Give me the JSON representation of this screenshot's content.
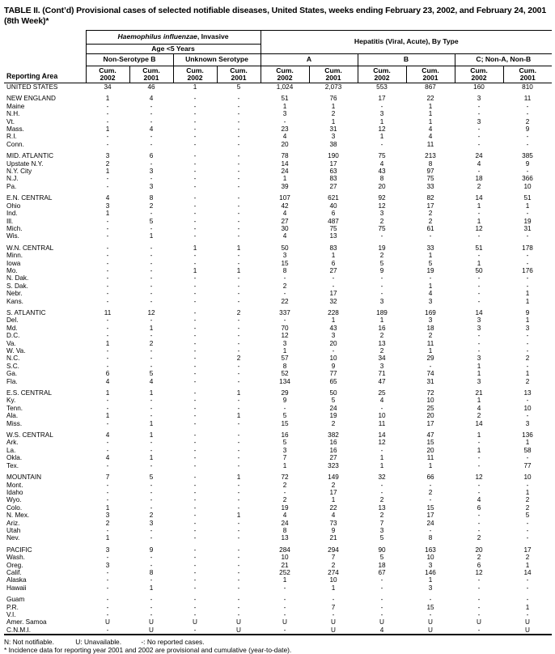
{
  "title": "TABLE II. (Cont’d) Provisional cases of selected notifiable diseases, United States, weeks ending February 23, 2002, and February 24, 2001 (8th Week)*",
  "header": {
    "reporting_area": "Reporting Area",
    "haemophilus_italic": "Haemophilus influenzae",
    "haemophilus_rest": ", Invasive",
    "age_group": "Age <5 Years",
    "hepatitis": "Hepatitis (Viral, Acute), By Type",
    "groups": [
      "Non-Serotype B",
      "Unknown Serotype",
      "A",
      "B",
      "C; Non-A, Non-B"
    ],
    "cum_label": "Cum.",
    "years": [
      "2002",
      "2001",
      "2002",
      "2001",
      "2002",
      "2001",
      "2002",
      "2001",
      "2002",
      "2001"
    ]
  },
  "rows": [
    {
      "area": "UNITED STATES",
      "type": "total",
      "gap": false,
      "values": [
        "34",
        "46",
        "1",
        "5",
        "1,024",
        "2,073",
        "553",
        "867",
        "160",
        "810"
      ]
    },
    {
      "area": "NEW ENGLAND",
      "type": "region",
      "gap": true,
      "values": [
        "1",
        "4",
        "-",
        "-",
        "51",
        "76",
        "17",
        "22",
        "3",
        "11"
      ]
    },
    {
      "area": "Maine",
      "type": "state",
      "gap": false,
      "values": [
        "-",
        "-",
        "-",
        "-",
        "1",
        "1",
        "-",
        "1",
        "-",
        "-"
      ]
    },
    {
      "area": "N.H.",
      "type": "state",
      "gap": false,
      "values": [
        "-",
        "-",
        "-",
        "-",
        "3",
        "2",
        "3",
        "1",
        "-",
        "-"
      ]
    },
    {
      "area": "Vt.",
      "type": "state",
      "gap": false,
      "values": [
        "-",
        "-",
        "-",
        "-",
        "-",
        "1",
        "1",
        "1",
        "3",
        "2"
      ]
    },
    {
      "area": "Mass.",
      "type": "state",
      "gap": false,
      "values": [
        "1",
        "4",
        "-",
        "-",
        "23",
        "31",
        "12",
        "4",
        "-",
        "9"
      ]
    },
    {
      "area": "R.I.",
      "type": "state",
      "gap": false,
      "values": [
        "-",
        "-",
        "-",
        "-",
        "4",
        "3",
        "1",
        "4",
        "-",
        "-"
      ]
    },
    {
      "area": "Conn.",
      "type": "state",
      "gap": false,
      "values": [
        "-",
        "-",
        "-",
        "-",
        "20",
        "38",
        "-",
        "11",
        "-",
        "-"
      ]
    },
    {
      "area": "MID. ATLANTIC",
      "type": "region",
      "gap": true,
      "values": [
        "3",
        "6",
        "-",
        "-",
        "78",
        "190",
        "75",
        "213",
        "24",
        "385"
      ]
    },
    {
      "area": "Upstate N.Y.",
      "type": "state",
      "gap": false,
      "values": [
        "2",
        "-",
        "-",
        "-",
        "14",
        "17",
        "4",
        "8",
        "4",
        "9"
      ]
    },
    {
      "area": "N.Y. City",
      "type": "state",
      "gap": false,
      "values": [
        "1",
        "3",
        "-",
        "-",
        "24",
        "63",
        "43",
        "97",
        "-",
        "-"
      ]
    },
    {
      "area": "N.J.",
      "type": "state",
      "gap": false,
      "values": [
        "-",
        "-",
        "-",
        "-",
        "1",
        "83",
        "8",
        "75",
        "18",
        "366"
      ]
    },
    {
      "area": "Pa.",
      "type": "state",
      "gap": false,
      "values": [
        "-",
        "3",
        "-",
        "-",
        "39",
        "27",
        "20",
        "33",
        "2",
        "10"
      ]
    },
    {
      "area": "E.N. CENTRAL",
      "type": "region",
      "gap": true,
      "values": [
        "4",
        "8",
        "-",
        "-",
        "107",
        "621",
        "92",
        "82",
        "14",
        "51"
      ]
    },
    {
      "area": "Ohio",
      "type": "state",
      "gap": false,
      "values": [
        "3",
        "2",
        "-",
        "-",
        "42",
        "40",
        "12",
        "17",
        "1",
        "1"
      ]
    },
    {
      "area": "Ind.",
      "type": "state",
      "gap": false,
      "values": [
        "1",
        "-",
        "-",
        "-",
        "4",
        "6",
        "3",
        "2",
        "-",
        "-"
      ]
    },
    {
      "area": "Ill.",
      "type": "state",
      "gap": false,
      "values": [
        "-",
        "5",
        "-",
        "-",
        "27",
        "487",
        "2",
        "2",
        "1",
        "19"
      ]
    },
    {
      "area": "Mich.",
      "type": "state",
      "gap": false,
      "values": [
        "-",
        "-",
        "-",
        "-",
        "30",
        "75",
        "75",
        "61",
        "12",
        "31"
      ]
    },
    {
      "area": "Wis.",
      "type": "state",
      "gap": false,
      "values": [
        "-",
        "1",
        "-",
        "-",
        "4",
        "13",
        "-",
        "-",
        "-",
        "-"
      ]
    },
    {
      "area": "W.N. CENTRAL",
      "type": "region",
      "gap": true,
      "values": [
        "-",
        "-",
        "1",
        "1",
        "50",
        "83",
        "19",
        "33",
        "51",
        "178"
      ]
    },
    {
      "area": "Minn.",
      "type": "state",
      "gap": false,
      "values": [
        "-",
        "-",
        "-",
        "-",
        "3",
        "1",
        "2",
        "1",
        "-",
        "-"
      ]
    },
    {
      "area": "Iowa",
      "type": "state",
      "gap": false,
      "values": [
        "-",
        "-",
        "-",
        "-",
        "15",
        "6",
        "5",
        "5",
        "1",
        "-"
      ]
    },
    {
      "area": "Mo.",
      "type": "state",
      "gap": false,
      "values": [
        "-",
        "-",
        "1",
        "1",
        "8",
        "27",
        "9",
        "19",
        "50",
        "176"
      ]
    },
    {
      "area": "N. Dak.",
      "type": "state",
      "gap": false,
      "values": [
        "-",
        "-",
        "-",
        "-",
        "-",
        "-",
        "-",
        "-",
        "-",
        "-"
      ]
    },
    {
      "area": "S. Dak.",
      "type": "state",
      "gap": false,
      "values": [
        "-",
        "-",
        "-",
        "-",
        "2",
        "-",
        "-",
        "1",
        "-",
        "-"
      ]
    },
    {
      "area": "Nebr.",
      "type": "state",
      "gap": false,
      "values": [
        "-",
        "-",
        "-",
        "-",
        "-",
        "17",
        "-",
        "4",
        "-",
        "1"
      ]
    },
    {
      "area": "Kans.",
      "type": "state",
      "gap": false,
      "values": [
        "-",
        "-",
        "-",
        "-",
        "22",
        "32",
        "3",
        "3",
        "-",
        "1"
      ]
    },
    {
      "area": "S. ATLANTIC",
      "type": "region",
      "gap": true,
      "values": [
        "11",
        "12",
        "-",
        "2",
        "337",
        "228",
        "189",
        "169",
        "14",
        "9"
      ]
    },
    {
      "area": "Del.",
      "type": "state",
      "gap": false,
      "values": [
        "-",
        "-",
        "-",
        "-",
        "-",
        "1",
        "1",
        "3",
        "3",
        "1"
      ]
    },
    {
      "area": "Md.",
      "type": "state",
      "gap": false,
      "values": [
        "-",
        "1",
        "-",
        "-",
        "70",
        "43",
        "16",
        "18",
        "3",
        "3"
      ]
    },
    {
      "area": "D.C.",
      "type": "state",
      "gap": false,
      "values": [
        "-",
        "-",
        "-",
        "-",
        "12",
        "3",
        "2",
        "2",
        "-",
        "-"
      ]
    },
    {
      "area": "Va.",
      "type": "state",
      "gap": false,
      "values": [
        "1",
        "2",
        "-",
        "-",
        "3",
        "20",
        "13",
        "11",
        "-",
        "-"
      ]
    },
    {
      "area": "W. Va.",
      "type": "state",
      "gap": false,
      "values": [
        "-",
        "-",
        "-",
        "-",
        "1",
        "-",
        "2",
        "1",
        "-",
        "-"
      ]
    },
    {
      "area": "N.C.",
      "type": "state",
      "gap": false,
      "values": [
        "-",
        "-",
        "-",
        "2",
        "57",
        "10",
        "34",
        "29",
        "3",
        "2"
      ]
    },
    {
      "area": "S.C.",
      "type": "state",
      "gap": false,
      "values": [
        "-",
        "-",
        "-",
        "-",
        "8",
        "9",
        "3",
        "-",
        "1",
        "-"
      ]
    },
    {
      "area": "Ga.",
      "type": "state",
      "gap": false,
      "values": [
        "6",
        "5",
        "-",
        "-",
        "52",
        "77",
        "71",
        "74",
        "1",
        "1"
      ]
    },
    {
      "area": "Fla.",
      "type": "state",
      "gap": false,
      "values": [
        "4",
        "4",
        "-",
        "-",
        "134",
        "65",
        "47",
        "31",
        "3",
        "2"
      ]
    },
    {
      "area": "E.S. CENTRAL",
      "type": "region",
      "gap": true,
      "values": [
        "1",
        "1",
        "-",
        "1",
        "29",
        "50",
        "25",
        "72",
        "21",
        "13"
      ]
    },
    {
      "area": "Ky.",
      "type": "state",
      "gap": false,
      "values": [
        "-",
        "-",
        "-",
        "-",
        "9",
        "5",
        "4",
        "10",
        "1",
        "-"
      ]
    },
    {
      "area": "Tenn.",
      "type": "state",
      "gap": false,
      "values": [
        "-",
        "-",
        "-",
        "-",
        "-",
        "24",
        "-",
        "25",
        "4",
        "10"
      ]
    },
    {
      "area": "Ala.",
      "type": "state",
      "gap": false,
      "values": [
        "1",
        "-",
        "-",
        "1",
        "5",
        "19",
        "10",
        "20",
        "2",
        "-"
      ]
    },
    {
      "area": "Miss.",
      "type": "state",
      "gap": false,
      "values": [
        "-",
        "1",
        "-",
        "-",
        "15",
        "2",
        "11",
        "17",
        "14",
        "3"
      ]
    },
    {
      "area": "W.S. CENTRAL",
      "type": "region",
      "gap": true,
      "values": [
        "4",
        "1",
        "-",
        "-",
        "16",
        "382",
        "14",
        "47",
        "1",
        "136"
      ]
    },
    {
      "area": "Ark.",
      "type": "state",
      "gap": false,
      "values": [
        "-",
        "-",
        "-",
        "-",
        "5",
        "16",
        "12",
        "15",
        "-",
        "1"
      ]
    },
    {
      "area": "La.",
      "type": "state",
      "gap": false,
      "values": [
        "-",
        "-",
        "-",
        "-",
        "3",
        "16",
        "-",
        "20",
        "1",
        "58"
      ]
    },
    {
      "area": "Okla.",
      "type": "state",
      "gap": false,
      "values": [
        "4",
        "1",
        "-",
        "-",
        "7",
        "27",
        "1",
        "11",
        "-",
        "-"
      ]
    },
    {
      "area": "Tex.",
      "type": "state",
      "gap": false,
      "values": [
        "-",
        "-",
        "-",
        "-",
        "1",
        "323",
        "1",
        "1",
        "-",
        "77"
      ]
    },
    {
      "area": "MOUNTAIN",
      "type": "region",
      "gap": true,
      "values": [
        "7",
        "5",
        "-",
        "1",
        "72",
        "149",
        "32",
        "66",
        "12",
        "10"
      ]
    },
    {
      "area": "Mont.",
      "type": "state",
      "gap": false,
      "values": [
        "-",
        "-",
        "-",
        "-",
        "2",
        "2",
        "-",
        "-",
        "-",
        "-"
      ]
    },
    {
      "area": "Idaho",
      "type": "state",
      "gap": false,
      "values": [
        "-",
        "-",
        "-",
        "-",
        "-",
        "17",
        "-",
        "2",
        "-",
        "1"
      ]
    },
    {
      "area": "Wyo.",
      "type": "state",
      "gap": false,
      "values": [
        "-",
        "-",
        "-",
        "-",
        "2",
        "1",
        "2",
        "-",
        "4",
        "2"
      ]
    },
    {
      "area": "Colo.",
      "type": "state",
      "gap": false,
      "values": [
        "1",
        "-",
        "-",
        "-",
        "19",
        "22",
        "13",
        "15",
        "6",
        "2"
      ]
    },
    {
      "area": "N. Mex.",
      "type": "state",
      "gap": false,
      "values": [
        "3",
        "2",
        "-",
        "1",
        "4",
        "4",
        "2",
        "17",
        "-",
        "5"
      ]
    },
    {
      "area": "Ariz.",
      "type": "state",
      "gap": false,
      "values": [
        "2",
        "3",
        "-",
        "-",
        "24",
        "73",
        "7",
        "24",
        "-",
        "-"
      ]
    },
    {
      "area": "Utah",
      "type": "state",
      "gap": false,
      "values": [
        "-",
        "-",
        "-",
        "-",
        "8",
        "9",
        "3",
        "-",
        "-",
        "-"
      ]
    },
    {
      "area": "Nev.",
      "type": "state",
      "gap": false,
      "values": [
        "1",
        "-",
        "-",
        "-",
        "13",
        "21",
        "5",
        "8",
        "2",
        "-"
      ]
    },
    {
      "area": "PACIFIC",
      "type": "region",
      "gap": true,
      "values": [
        "3",
        "9",
        "-",
        "-",
        "284",
        "294",
        "90",
        "163",
        "20",
        "17"
      ]
    },
    {
      "area": "Wash.",
      "type": "state",
      "gap": false,
      "values": [
        "-",
        "-",
        "-",
        "-",
        "10",
        "7",
        "5",
        "10",
        "2",
        "2"
      ]
    },
    {
      "area": "Oreg.",
      "type": "state",
      "gap": false,
      "values": [
        "3",
        "-",
        "-",
        "-",
        "21",
        "2",
        "18",
        "3",
        "6",
        "1"
      ]
    },
    {
      "area": "Calif.",
      "type": "state",
      "gap": false,
      "values": [
        "-",
        "8",
        "-",
        "-",
        "252",
        "274",
        "67",
        "146",
        "12",
        "14"
      ]
    },
    {
      "area": "Alaska",
      "type": "state",
      "gap": false,
      "values": [
        "-",
        "-",
        "-",
        "-",
        "1",
        "10",
        "-",
        "1",
        "-",
        "-"
      ]
    },
    {
      "area": "Hawaii",
      "type": "state",
      "gap": false,
      "values": [
        "-",
        "1",
        "-",
        "-",
        "-",
        "1",
        "-",
        "3",
        "-",
        "-"
      ]
    },
    {
      "area": "Guam",
      "type": "state",
      "gap": true,
      "values": [
        "-",
        "-",
        "-",
        "-",
        "-",
        "-",
        "-",
        "-",
        "-",
        "-"
      ]
    },
    {
      "area": "P.R.",
      "type": "state",
      "gap": false,
      "values": [
        "-",
        "-",
        "-",
        "-",
        "-",
        "7",
        "-",
        "15",
        "-",
        "1"
      ]
    },
    {
      "area": "V.I.",
      "type": "state",
      "gap": false,
      "values": [
        "-",
        "-",
        "-",
        "-",
        "-",
        "-",
        "-",
        "-",
        "-",
        "-"
      ]
    },
    {
      "area": "Amer. Samoa",
      "type": "state",
      "gap": false,
      "values": [
        "U",
        "U",
        "U",
        "U",
        "U",
        "U",
        "U",
        "U",
        "U",
        "U"
      ]
    },
    {
      "area": "C.N.M.I.",
      "type": "state",
      "gap": false,
      "values": [
        "-",
        "U",
        "-",
        "U",
        "-",
        "U",
        "4",
        "U",
        "-",
        "U"
      ]
    }
  ],
  "footnotes": {
    "legend": [
      "N: Not notifiable.",
      "U: Unavailable.",
      "-: No reported cases."
    ],
    "note": "* Incidence data for reporting year 2001 and 2002 are provisional and cumulative (year-to-date)."
  }
}
